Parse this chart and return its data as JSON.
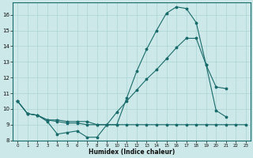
{
  "xlabel": "Humidex (Indice chaleur)",
  "bg_color": "#cce8e8",
  "grid_color": "#aad4d4",
  "line_color": "#1a6b6b",
  "xlim": [
    -0.5,
    23.5
  ],
  "ylim": [
    8,
    16.8
  ],
  "yticks": [
    8,
    9,
    10,
    11,
    12,
    13,
    14,
    15,
    16
  ],
  "xticks": [
    0,
    1,
    2,
    3,
    4,
    5,
    6,
    7,
    8,
    9,
    10,
    11,
    12,
    13,
    14,
    15,
    16,
    17,
    18,
    19,
    20,
    21,
    22,
    23
  ],
  "line1_x": [
    0,
    1,
    2,
    3,
    4,
    5,
    6,
    7,
    8,
    9,
    10,
    11,
    12,
    13,
    14,
    15,
    16,
    17,
    18,
    19,
    20,
    21
  ],
  "line1_y": [
    10.5,
    9.7,
    9.6,
    9.2,
    8.4,
    8.5,
    8.6,
    8.2,
    8.2,
    9.0,
    9.0,
    10.7,
    12.4,
    13.8,
    15.0,
    16.1,
    16.5,
    16.4,
    15.5,
    12.8,
    9.9,
    9.5
  ],
  "line2_x": [
    0,
    1,
    2,
    3,
    4,
    5,
    6,
    7,
    8,
    9,
    10,
    11,
    12,
    13,
    14,
    15,
    16,
    17,
    18,
    19,
    20,
    21,
    22,
    23
  ],
  "line2_y": [
    10.5,
    9.7,
    9.6,
    9.3,
    9.3,
    9.2,
    9.2,
    9.2,
    9.0,
    9.0,
    9.8,
    10.5,
    11.2,
    11.9,
    12.5,
    13.2,
    13.9,
    14.5,
    14.5,
    12.8,
    11.4,
    11.3,
    null,
    null
  ],
  "line3_x": [
    0,
    1,
    2,
    3,
    4,
    5,
    6,
    7,
    8,
    9,
    10,
    11,
    12,
    13,
    14,
    15,
    16,
    17,
    18,
    19,
    20,
    21,
    22,
    23
  ],
  "line3_y": [
    10.5,
    9.7,
    9.6,
    9.3,
    9.2,
    9.1,
    9.1,
    9.0,
    9.0,
    9.0,
    9.0,
    9.0,
    9.0,
    9.0,
    9.0,
    9.0,
    9.0,
    9.0,
    9.0,
    9.0,
    9.0,
    9.0,
    9.0,
    9.0
  ]
}
